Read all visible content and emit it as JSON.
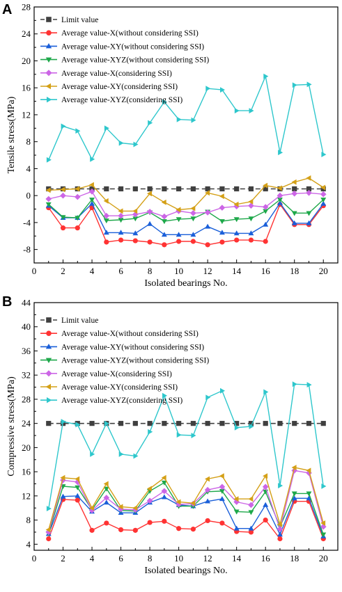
{
  "panels": [
    {
      "letter": "A",
      "chart_data": {
        "type": "line",
        "xlabel": "Isolated bearings No.",
        "ylabel": "Tensile stress(MPa)",
        "xlim": [
          0,
          21
        ],
        "ylim": [
          -10,
          28
        ],
        "xticks": [
          0,
          2,
          4,
          6,
          8,
          10,
          12,
          14,
          16,
          18,
          20
        ],
        "yticks": [
          -8,
          -4,
          0,
          4,
          8,
          12,
          16,
          20,
          24,
          28
        ],
        "grid": false,
        "legend_position": "top-left",
        "x": [
          1,
          2,
          3,
          4,
          5,
          6,
          7,
          8,
          9,
          10,
          11,
          12,
          13,
          14,
          15,
          16,
          17,
          18,
          19,
          20
        ],
        "series": [
          {
            "name": "Limit value",
            "color": "#404040",
            "marker": "square",
            "dashed": true,
            "values": [
              1,
              1,
              1,
              1,
              1,
              1,
              1,
              1,
              1,
              1,
              1,
              1,
              1,
              1,
              1,
              1,
              1,
              1,
              1,
              1
            ]
          },
          {
            "name": "Average value-X(without considering SSI)",
            "color": "#ff3333",
            "marker": "circle",
            "values": [
              -1.8,
              -4.8,
              -4.8,
              -1.8,
              -6.9,
              -6.6,
              -6.7,
              -6.9,
              -7.3,
              -6.8,
              -6.8,
              -7.3,
              -6.9,
              -6.6,
              -6.6,
              -6.8,
              -1.3,
              -4.3,
              -4.3,
              -1.5
            ]
          },
          {
            "name": "Average value-XY(without considering SSI)",
            "color": "#1a5fd9",
            "marker": "triangle-up",
            "values": [
              -1.5,
              -3.3,
              -3.3,
              -1.2,
              -5.5,
              -5.5,
              -5.6,
              -4.2,
              -5.8,
              -5.8,
              -5.8,
              -4.6,
              -5.5,
              -5.6,
              -5.6,
              -4.3,
              -1.1,
              -4.1,
              -4.1,
              -1.2
            ]
          },
          {
            "name": "Average value-XYZ(without considering SSI)",
            "color": "#1ea84a",
            "marker": "triangle-down",
            "values": [
              -1.3,
              -3.2,
              -3.3,
              -0.6,
              -3.7,
              -3.6,
              -3.4,
              -2.5,
              -3.8,
              -3.5,
              -3.4,
              -2.4,
              -3.8,
              -3.5,
              -3.4,
              -2.3,
              -0.6,
              -2.6,
              -2.6,
              -0.6
            ]
          },
          {
            "name": "Average value-X(considering SSI)",
            "color": "#cc66e6",
            "marker": "diamond",
            "values": [
              -0.5,
              0.0,
              -0.2,
              0.6,
              -3.0,
              -3.0,
              -2.8,
              -2.4,
              -3.1,
              -2.3,
              -2.6,
              -2.5,
              -1.8,
              -1.6,
              -1.5,
              -1.7,
              0.0,
              0.3,
              0.4,
              0.2
            ]
          },
          {
            "name": "Average value-XY(considering SSI)",
            "color": "#d4a017",
            "marker": "triangle-left",
            "values": [
              0.8,
              0.9,
              1.0,
              1.6,
              -0.8,
              -2.3,
              -2.3,
              0.3,
              -1.0,
              -2.1,
              -1.9,
              0.4,
              -0.1,
              -1.3,
              -0.9,
              1.5,
              1.1,
              2.0,
              2.6,
              1.2
            ]
          },
          {
            "name": "Average value-XYZ(considering SSI)",
            "color": "#2ec7cc",
            "marker": "triangle-right",
            "values": [
              5.3,
              10.3,
              9.6,
              5.4,
              10.0,
              7.8,
              7.6,
              10.8,
              13.9,
              11.3,
              11.2,
              15.9,
              15.7,
              12.6,
              12.6,
              17.7,
              6.4,
              16.4,
              16.5,
              6.1
            ]
          }
        ]
      }
    },
    {
      "letter": "B",
      "chart_data": {
        "type": "line",
        "xlabel": "Isolated bearings No.",
        "ylabel": "Compressive stress(MPa)",
        "xlim": [
          0,
          21
        ],
        "ylim": [
          3,
          44
        ],
        "xticks": [
          0,
          2,
          4,
          6,
          8,
          10,
          12,
          14,
          16,
          18,
          20
        ],
        "yticks": [
          4,
          8,
          12,
          16,
          20,
          24,
          28,
          32,
          36,
          40,
          44
        ],
        "grid": false,
        "legend_position": "top-left",
        "x": [
          1,
          2,
          3,
          4,
          5,
          6,
          7,
          8,
          9,
          10,
          11,
          12,
          13,
          14,
          15,
          16,
          17,
          18,
          19,
          20
        ],
        "series": [
          {
            "name": "Limit value",
            "color": "#404040",
            "marker": "square",
            "dashed": true,
            "values": [
              24,
              24,
              24,
              24,
              24,
              24,
              24,
              24,
              24,
              24,
              24,
              24,
              24,
              24,
              24,
              24,
              24,
              24,
              24,
              24
            ]
          },
          {
            "name": "Average value-X(without considering SSI)",
            "color": "#ff3333",
            "marker": "circle",
            "values": [
              4.9,
              11.4,
              11.3,
              6.3,
              7.5,
              6.4,
              6.3,
              7.6,
              7.8,
              6.6,
              6.5,
              7.9,
              7.5,
              6.1,
              6.0,
              8.0,
              4.9,
              11.1,
              11.1,
              4.9
            ]
          },
          {
            "name": "Average value-XY(without considering SSI)",
            "color": "#1a5fd9",
            "marker": "triangle-up",
            "values": [
              5.7,
              11.9,
              12.0,
              9.4,
              10.9,
              9.2,
              9.2,
              10.9,
              11.8,
              10.5,
              10.3,
              11.1,
              11.5,
              6.6,
              6.6,
              10.5,
              5.6,
              11.6,
              11.6,
              5.3
            ]
          },
          {
            "name": "Average value-XYZ(without considering SSI)",
            "color": "#1ea84a",
            "marker": "triangle-down",
            "values": [
              5.8,
              13.6,
              13.4,
              9.7,
              13.2,
              9.6,
              9.5,
              12.8,
              14.2,
              10.3,
              10.3,
              12.7,
              12.8,
              9.4,
              9.3,
              12.7,
              6.9,
              12.4,
              12.4,
              5.6
            ]
          },
          {
            "name": "Average value-X(considering SSI)",
            "color": "#cc66e6",
            "marker": "diamond",
            "values": [
              6.0,
              14.6,
              14.3,
              9.6,
              11.7,
              9.8,
              9.7,
              11.2,
              12.8,
              10.6,
              10.7,
              13.0,
              13.5,
              11.0,
              10.5,
              13.5,
              6.5,
              16.2,
              15.8,
              6.9
            ]
          },
          {
            "name": "Average value-XY(considering SSI)",
            "color": "#d4a017",
            "marker": "triangle-left",
            "values": [
              6.4,
              15.0,
              14.8,
              10.0,
              14.0,
              10.2,
              10.0,
              13.2,
              15.0,
              11.0,
              10.8,
              14.8,
              15.3,
              11.5,
              11.5,
              15.3,
              7.3,
              16.7,
              16.2,
              7.5
            ]
          },
          {
            "name": "Average value-XYZ(considering SSI)",
            "color": "#2ec7cc",
            "marker": "triangle-right",
            "values": [
              9.9,
              24.3,
              23.8,
              18.9,
              24.0,
              18.9,
              18.6,
              22.6,
              28.6,
              22.1,
              22.0,
              28.3,
              29.4,
              23.3,
              23.5,
              29.2,
              13.7,
              30.5,
              30.4,
              13.6
            ]
          }
        ]
      }
    }
  ]
}
